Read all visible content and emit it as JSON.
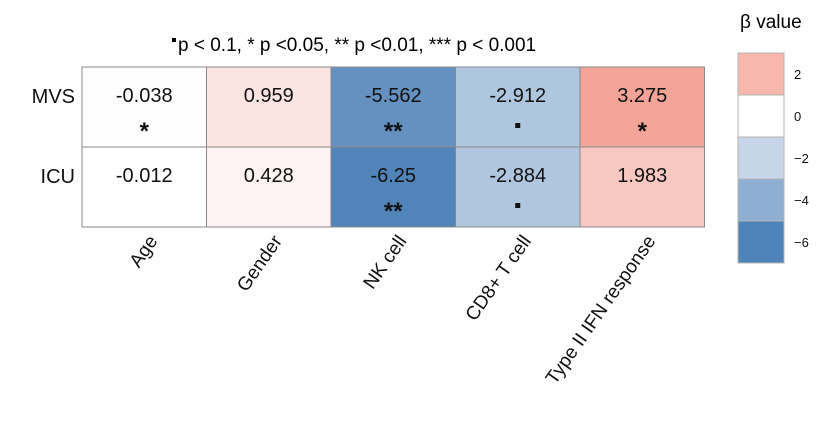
{
  "chart_data": {
    "type": "heatmap",
    "rows": [
      "MVS",
      "ICU"
    ],
    "columns": [
      "Age",
      "Gender",
      "NK cell",
      "CD8+ T cell",
      "Type II IFN response"
    ],
    "values": [
      [
        -0.038,
        0.959,
        -5.562,
        -2.912,
        3.275
      ],
      [
        -0.012,
        0.428,
        -6.25,
        -2.884,
        1.983
      ]
    ],
    "cell_labels": [
      [
        "-0.038",
        "0.959",
        "-5.562",
        "-2.912",
        "3.275"
      ],
      [
        "-0.012",
        "0.428",
        "-6.25",
        "-2.884",
        "1.983"
      ]
    ],
    "significance": [
      [
        "*",
        "",
        "**",
        "·",
        "*"
      ],
      [
        "",
        "",
        "**",
        "·",
        ""
      ]
    ],
    "significance_note": "p < 0.1,  * p <0.05, ** p <0.01, *** p < 0.001",
    "legend": {
      "title": "β value",
      "ticks": [
        "2",
        "0",
        "−2",
        "−4",
        "−6"
      ],
      "placement": "right"
    },
    "color_scale": {
      "negative": "#4a7fb5",
      "zero": "#ffffff",
      "positive": "#ee8a7c",
      "legend_colors": [
        "#f7b7ab",
        "#ffffff",
        "#c7d5e8",
        "#8eaed3",
        "#4e84b9"
      ]
    }
  }
}
